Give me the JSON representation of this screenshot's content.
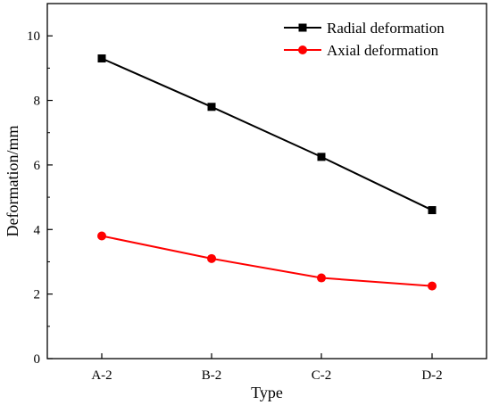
{
  "chart_data": {
    "type": "line",
    "xlabel": "Type",
    "ylabel": "Deformation/mm",
    "ylim": [
      0,
      11
    ],
    "yticks": [
      0,
      2,
      4,
      6,
      8,
      10
    ],
    "categories": [
      "A-2",
      "B-2",
      "C-2",
      "D-2"
    ],
    "grid": false,
    "legend_position": "top-right",
    "series": [
      {
        "name": "Radial deformation",
        "values": [
          9.3,
          7.8,
          6.25,
          4.6
        ],
        "color": "#000000",
        "marker": "square"
      },
      {
        "name": "Axial deformation",
        "values": [
          3.8,
          3.1,
          2.5,
          2.25
        ],
        "color": "#ff0000",
        "marker": "circle"
      }
    ]
  }
}
